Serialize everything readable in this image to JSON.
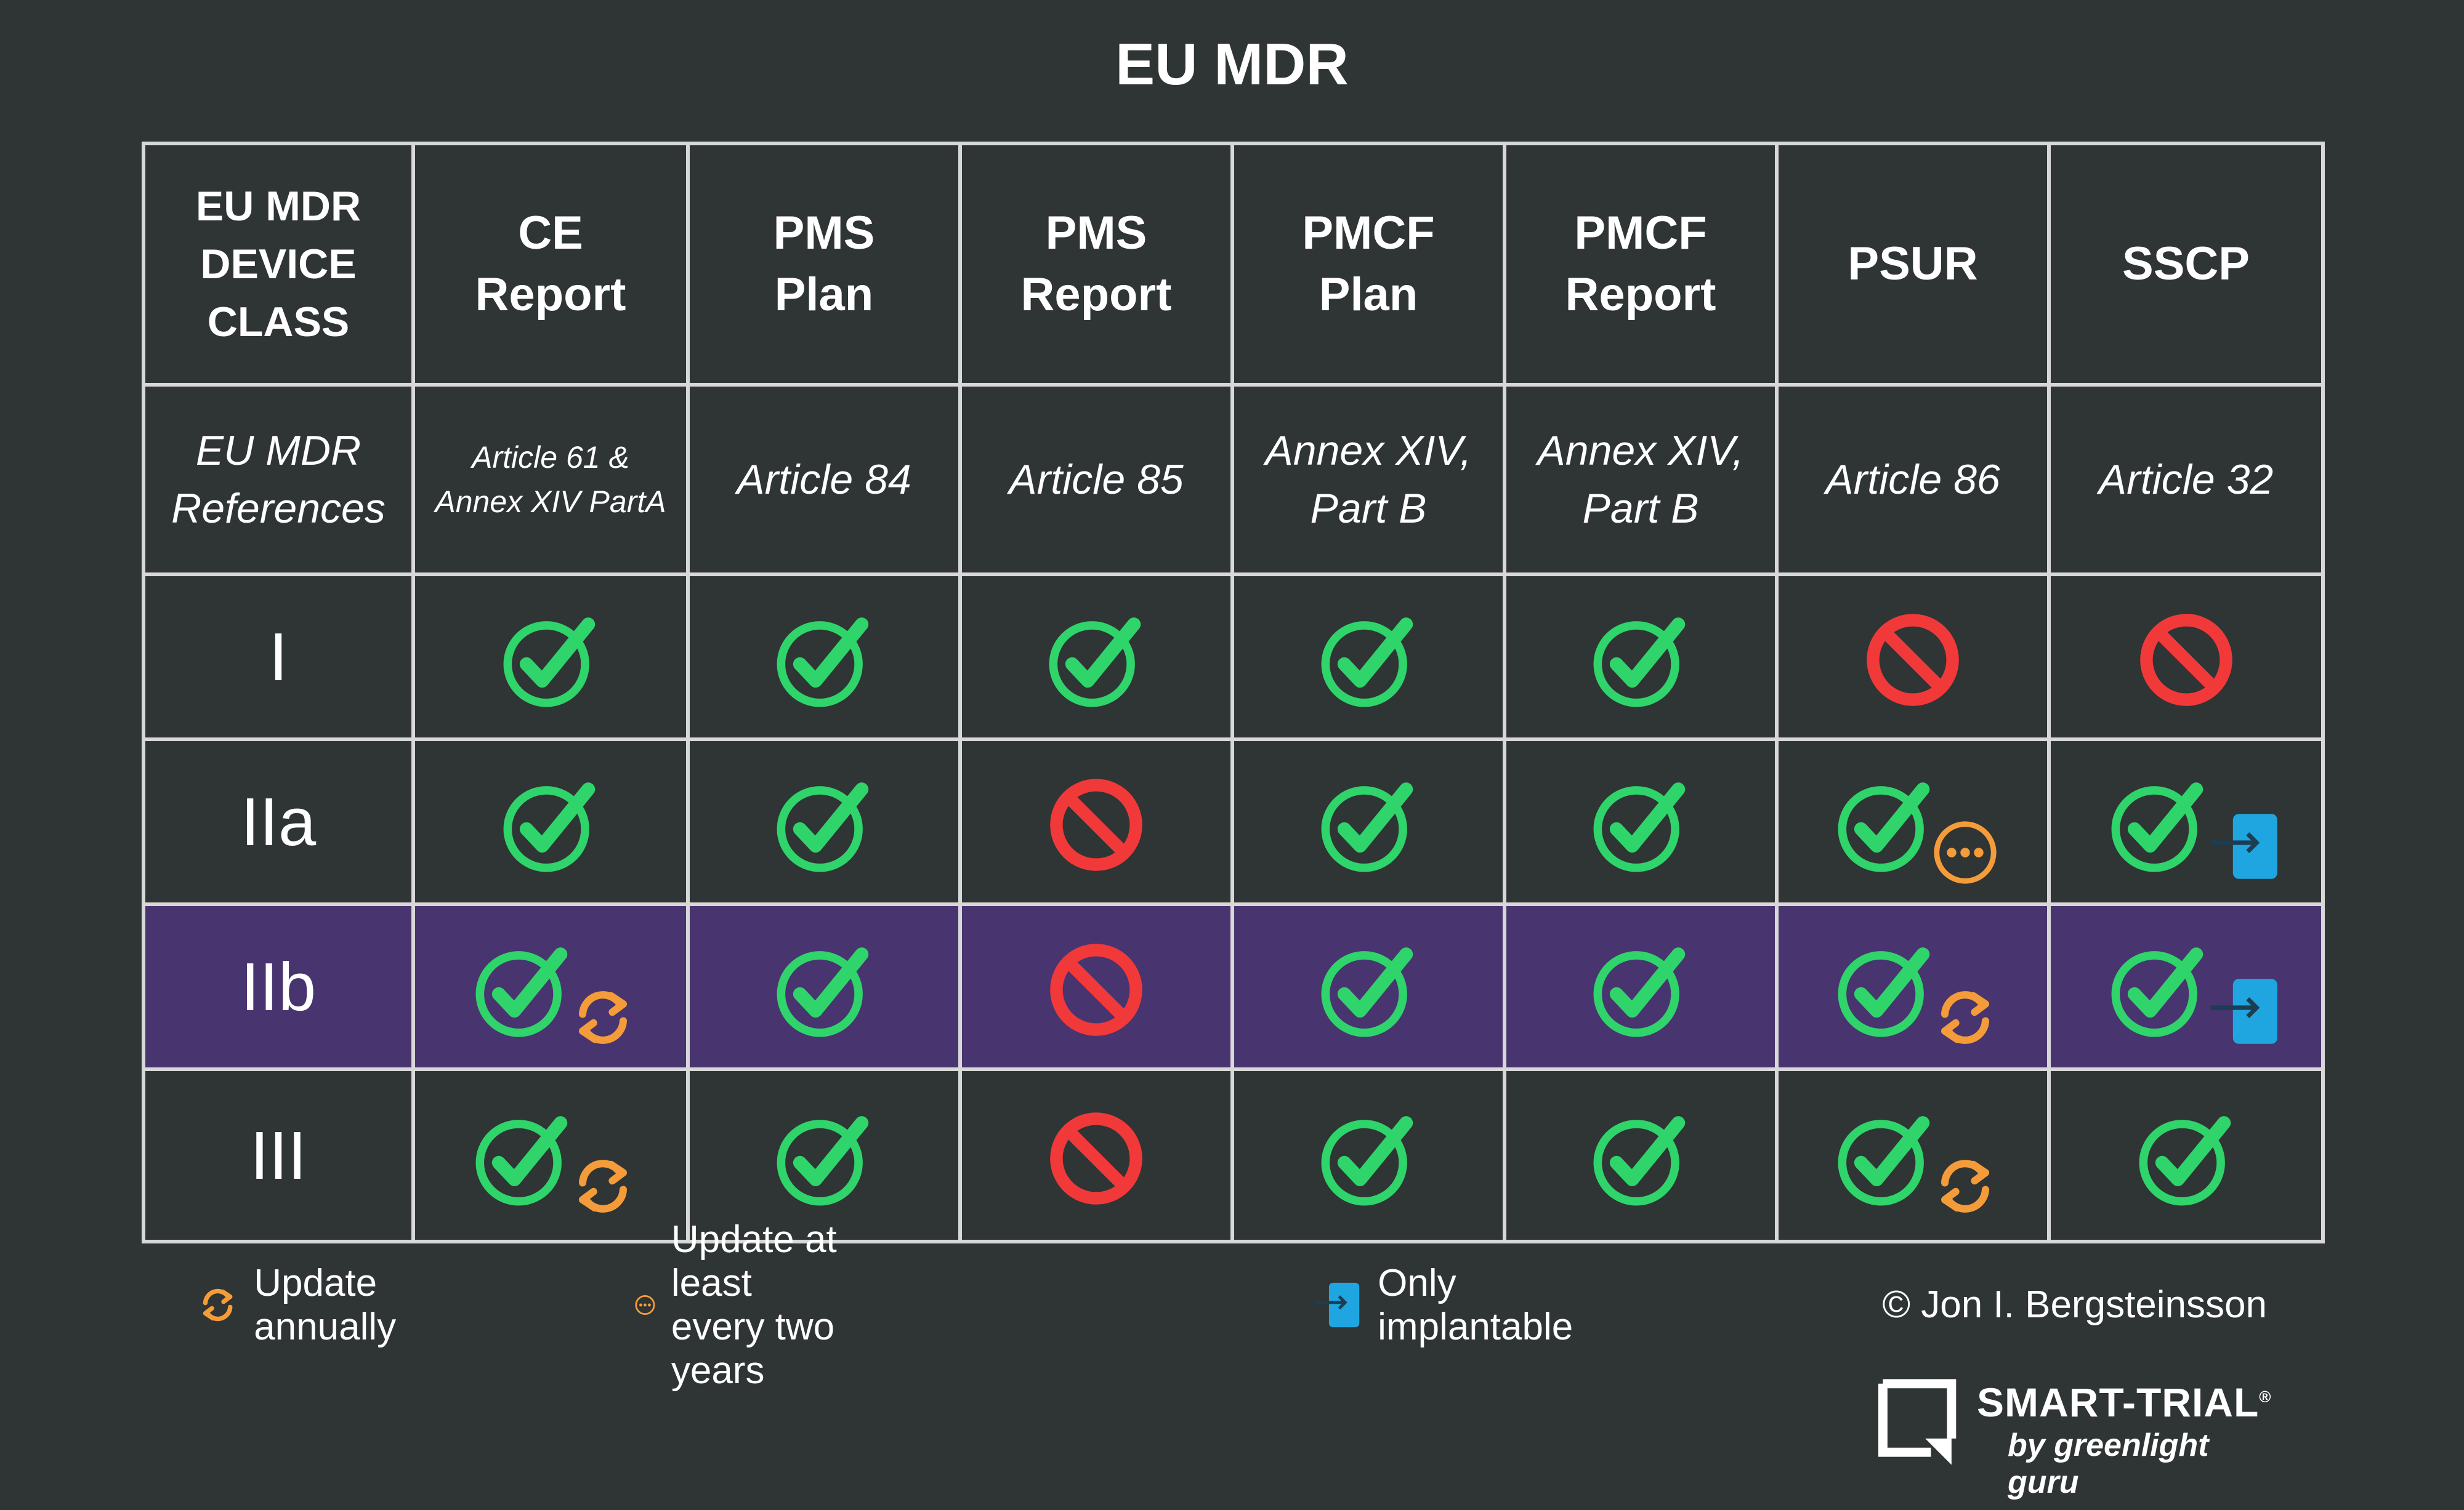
{
  "title": "EU MDR",
  "header": {
    "class_col": [
      "EU MDR",
      "DEVICE",
      "CLASS"
    ],
    "columns": [
      {
        "line1": "CE",
        "line2": "Report"
      },
      {
        "line1": "PMS",
        "line2": "Plan"
      },
      {
        "line1": "PMS",
        "line2": "Report"
      },
      {
        "line1": "PMCF",
        "line2": "Plan"
      },
      {
        "line1": "PMCF",
        "line2": "Report"
      },
      {
        "line1": "PSUR",
        "line2": ""
      },
      {
        "line1": "SSCP",
        "line2": ""
      }
    ]
  },
  "references": {
    "label": [
      "EU MDR",
      "References"
    ],
    "values": [
      [
        "Article 61 &",
        "Annex XIV PartA"
      ],
      [
        "Article 84",
        ""
      ],
      [
        "Article 85",
        ""
      ],
      [
        "Annex XIV,",
        "Part B"
      ],
      [
        "Annex XIV,",
        "Part B"
      ],
      [
        "Article 86",
        ""
      ],
      [
        "Article 32",
        ""
      ]
    ]
  },
  "rows": [
    {
      "class": "I",
      "highlight": false,
      "cells": [
        {
          "s": "yes"
        },
        {
          "s": "yes"
        },
        {
          "s": "yes"
        },
        {
          "s": "yes"
        },
        {
          "s": "yes"
        },
        {
          "s": "no"
        },
        {
          "s": "no"
        }
      ]
    },
    {
      "class": "IIa",
      "highlight": false,
      "cells": [
        {
          "s": "yes"
        },
        {
          "s": "yes"
        },
        {
          "s": "no"
        },
        {
          "s": "yes"
        },
        {
          "s": "yes"
        },
        {
          "s": "yes",
          "badge": "biennial"
        },
        {
          "s": "yes",
          "badge": "implant"
        }
      ]
    },
    {
      "class": "IIb",
      "highlight": true,
      "cells": [
        {
          "s": "yes",
          "badge": "annual"
        },
        {
          "s": "yes"
        },
        {
          "s": "no"
        },
        {
          "s": "yes"
        },
        {
          "s": "yes"
        },
        {
          "s": "yes",
          "badge": "annual"
        },
        {
          "s": "yes",
          "badge": "implant"
        }
      ]
    },
    {
      "class": "III",
      "highlight": false,
      "cells": [
        {
          "s": "yes",
          "badge": "annual"
        },
        {
          "s": "yes"
        },
        {
          "s": "no"
        },
        {
          "s": "yes"
        },
        {
          "s": "yes"
        },
        {
          "s": "yes",
          "badge": "annual"
        },
        {
          "s": "yes"
        }
      ]
    }
  ],
  "legend": {
    "annual": "Update annually",
    "biennial": "Update at least every two years",
    "implant": "Only implantable"
  },
  "copyright": "© Jon I. Bergsteinsson",
  "logo": {
    "name": "SMART-TRIAL",
    "reg": "®",
    "tagline": "by greenlight guru"
  },
  "icons": {
    "yes": "check-circle-icon",
    "no": "prohibited-icon",
    "annual": "refresh-cycle-icon",
    "biennial": "ellipsis-circle-icon",
    "implant": "implant-arrow-icon"
  },
  "colors": {
    "background": "#2f3434",
    "highlight_row": "#48346f",
    "check": "#2fd46a",
    "prohibited": "#f2393a",
    "orange": "#f59c3a",
    "implant": "#1fa6e0",
    "grid": "#d8d8d8"
  }
}
